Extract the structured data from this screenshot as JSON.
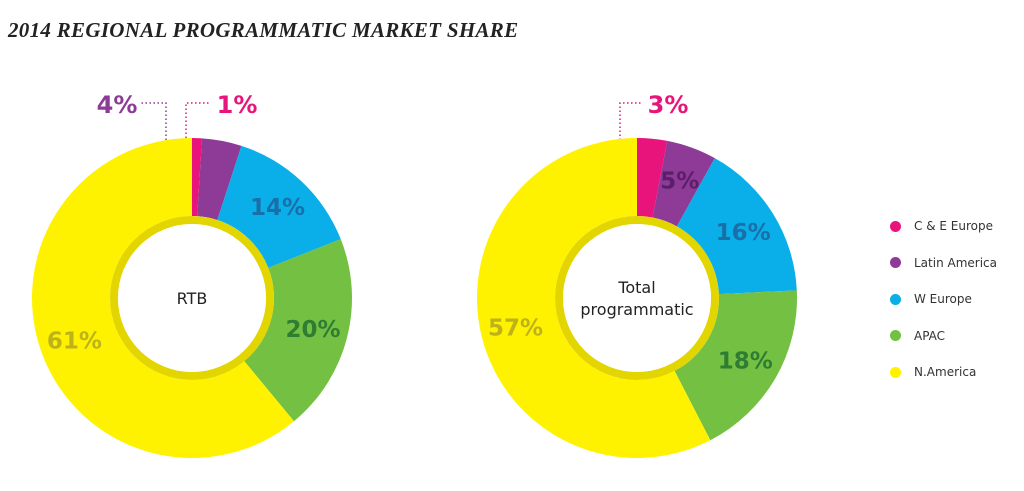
{
  "title": "2014 REGIONAL PROGRAMMATIC MARKET SHARE",
  "colors": {
    "c_e_europe": "#e8147c",
    "latin_america": "#8e3a97",
    "w_europe": "#0aaee8",
    "apac": "#74c043",
    "n_america": "#fff200",
    "inner_ring": "#e3d500"
  },
  "chart_data": [
    {
      "type": "pie",
      "center_label": "RTB",
      "categories": [
        "C & E Europe",
        "Latin America",
        "W Europe",
        "APAC",
        "N.America"
      ],
      "values": [
        1,
        4,
        14,
        20,
        61
      ],
      "labels": [
        "1%",
        "4%",
        "14%",
        "20%",
        "61%"
      ]
    },
    {
      "type": "pie",
      "center_label": "Total programmatic",
      "categories": [
        "C & E Europe",
        "Latin America",
        "W Europe",
        "APAC",
        "N.America"
      ],
      "values": [
        3,
        5,
        16,
        18,
        57
      ],
      "labels": [
        "3%",
        "5%",
        "16%",
        "18%",
        "57%"
      ]
    }
  ],
  "legend": [
    {
      "label": "C & E Europe",
      "color": "#e8147c"
    },
    {
      "label": "Latin America",
      "color": "#8e3a97"
    },
    {
      "label": "W Europe",
      "color": "#0aaee8"
    },
    {
      "label": "APAC",
      "color": "#74c043"
    },
    {
      "label": "N.America",
      "color": "#fff200"
    }
  ]
}
